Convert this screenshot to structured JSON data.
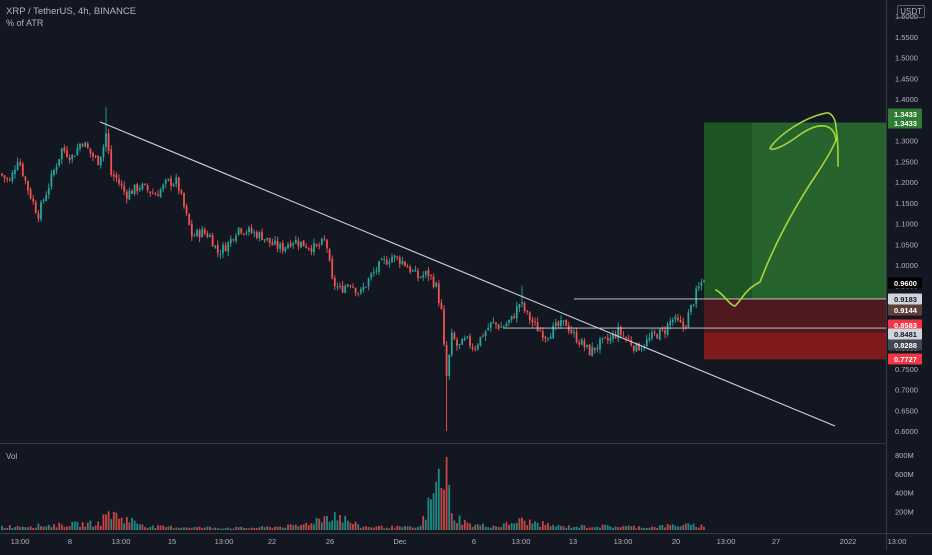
{
  "header": {
    "title": "XRP / TetherUS, 4h, BINANCE",
    "indicator": "% of ATR",
    "currency_badge": "USDT"
  },
  "colors": {
    "background": "#131722",
    "up": "#26a69a",
    "down": "#ef5350",
    "trendline": "#d1d4dc",
    "target_zone": "#2e7d32",
    "stop_zone": "#7f1d1d",
    "drawing": "#a8d43a"
  },
  "chart_data": [
    {
      "type": "candlestick",
      "title": "XRP / TetherUS, 4h, BINANCE",
      "ylim": [
        0.6,
        1.6
      ],
      "y_ticks": [
        "1.6000",
        "1.5500",
        "1.5000",
        "1.4500",
        "1.4000",
        "1.3500",
        "1.3000",
        "1.2500",
        "1.2000",
        "1.1500",
        "1.1000",
        "1.0500",
        "1.0000",
        "0.9500",
        "0.9000",
        "0.8500",
        "0.8000",
        "0.7500",
        "0.7000",
        "0.6500",
        "0.6000"
      ],
      "x_ticks": [
        "13:00",
        "8",
        "13:00",
        "15",
        "13:00",
        "22",
        "26",
        "Dec",
        "6",
        "13:00",
        "13",
        "13:00",
        "20",
        "13:00",
        "27",
        "2022",
        "13:00"
      ],
      "price_labels": [
        {
          "value": 1.3433,
          "text": "1.3433",
          "color": "#2e7d32"
        },
        {
          "value": 1.3433,
          "text": "1.3433",
          "color": "#2e7d32"
        },
        {
          "value": 0.96,
          "text": "0.9600",
          "color": "#000000"
        },
        {
          "value": 0.9183,
          "text": "0.9183",
          "color": "#d1d4dc"
        },
        {
          "value": 0.9144,
          "text": "0.9144",
          "color": "#5d4037"
        },
        {
          "value": 0.8583,
          "text": "0.8583",
          "color": "#f23645"
        },
        {
          "value": 0.8481,
          "text": "0.8481",
          "color": "#d1d4dc"
        },
        {
          "value": 0.8288,
          "text": "0.8288",
          "color": "#434651"
        },
        {
          "value": 0.7727,
          "text": "0.7727",
          "color": "#f23645"
        }
      ],
      "anchors": [
        [
          0,
          1.22
        ],
        [
          10,
          1.2
        ],
        [
          18,
          1.26
        ],
        [
          27,
          1.19
        ],
        [
          38,
          1.12
        ],
        [
          50,
          1.2
        ],
        [
          62,
          1.28
        ],
        [
          72,
          1.26
        ],
        [
          82,
          1.3
        ],
        [
          90,
          1.27
        ],
        [
          98,
          1.25
        ],
        [
          104,
          1.29
        ],
        [
          107,
          1.33
        ],
        [
          110,
          1.22
        ],
        [
          116,
          1.21
        ],
        [
          126,
          1.17
        ],
        [
          140,
          1.19
        ],
        [
          156,
          1.17
        ],
        [
          168,
          1.2
        ],
        [
          177,
          1.2
        ],
        [
          185,
          1.13
        ],
        [
          192,
          1.07
        ],
        [
          202,
          1.08
        ],
        [
          210,
          1.07
        ],
        [
          218,
          1.03
        ],
        [
          228,
          1.05
        ],
        [
          238,
          1.09
        ],
        [
          250,
          1.08
        ],
        [
          262,
          1.07
        ],
        [
          272,
          1.05
        ],
        [
          282,
          1.04
        ],
        [
          292,
          1.06
        ],
        [
          304,
          1.05
        ],
        [
          316,
          1.04
        ],
        [
          326,
          1.06
        ],
        [
          332,
          0.96
        ],
        [
          340,
          0.94
        ],
        [
          350,
          0.96
        ],
        [
          360,
          0.93
        ],
        [
          370,
          0.97
        ],
        [
          380,
          1.0
        ],
        [
          392,
          1.02
        ],
        [
          402,
          1.01
        ],
        [
          410,
          0.99
        ],
        [
          418,
          0.97
        ],
        [
          428,
          0.98
        ],
        [
          436,
          0.95
        ],
        [
          442,
          0.88
        ],
        [
          446,
          0.72
        ],
        [
          452,
          0.83
        ],
        [
          458,
          0.8
        ],
        [
          466,
          0.82
        ],
        [
          474,
          0.8
        ],
        [
          482,
          0.83
        ],
        [
          492,
          0.86
        ],
        [
          502,
          0.85
        ],
        [
          512,
          0.87
        ],
        [
          520,
          0.91
        ],
        [
          527,
          0.88
        ],
        [
          536,
          0.85
        ],
        [
          546,
          0.83
        ],
        [
          556,
          0.85
        ],
        [
          566,
          0.86
        ],
        [
          574,
          0.83
        ],
        [
          582,
          0.81
        ],
        [
          590,
          0.79
        ],
        [
          600,
          0.81
        ],
        [
          610,
          0.82
        ],
        [
          618,
          0.84
        ],
        [
          628,
          0.82
        ],
        [
          636,
          0.8
        ],
        [
          644,
          0.81
        ],
        [
          654,
          0.83
        ],
        [
          664,
          0.84
        ],
        [
          672,
          0.87
        ],
        [
          678,
          0.86
        ],
        [
          684,
          0.85
        ],
        [
          690,
          0.89
        ],
        [
          696,
          0.93
        ],
        [
          702,
          0.96
        ],
        [
          706,
          0.98
        ]
      ],
      "spikes": [
        {
          "x": 107,
          "high": 1.38
        },
        {
          "x": 446,
          "low": 0.6
        },
        {
          "x": 522,
          "high": 0.95
        }
      ],
      "volume": {
        "y_ticks": [
          "800M",
          "600M",
          "400M",
          "200M"
        ],
        "ylim": [
          0,
          800
        ],
        "anchors": [
          [
            0,
            40
          ],
          [
            50,
            55
          ],
          [
            100,
            80
          ],
          [
            108,
            200
          ],
          [
            150,
            40
          ],
          [
            200,
            30
          ],
          [
            250,
            25
          ],
          [
            300,
            50
          ],
          [
            334,
            190
          ],
          [
            360,
            40
          ],
          [
            420,
            30
          ],
          [
            446,
            780
          ],
          [
            452,
            180
          ],
          [
            470,
            60
          ],
          [
            500,
            45
          ],
          [
            520,
            110
          ],
          [
            560,
            40
          ],
          [
            600,
            45
          ],
          [
            650,
            35
          ],
          [
            680,
            60
          ],
          [
            706,
            45
          ]
        ]
      },
      "overlays": {
        "trendline": {
          "x0": 100,
          "y0": 1.345,
          "x1": 835,
          "y1": 0.612
        },
        "position": {
          "x0": 704,
          "x1": 886,
          "entry": 0.9183,
          "target": 1.3433,
          "stop": 0.7727,
          "mid": 0.8583
        },
        "levels": [
          0.9183,
          0.8481
        ]
      }
    }
  ]
}
